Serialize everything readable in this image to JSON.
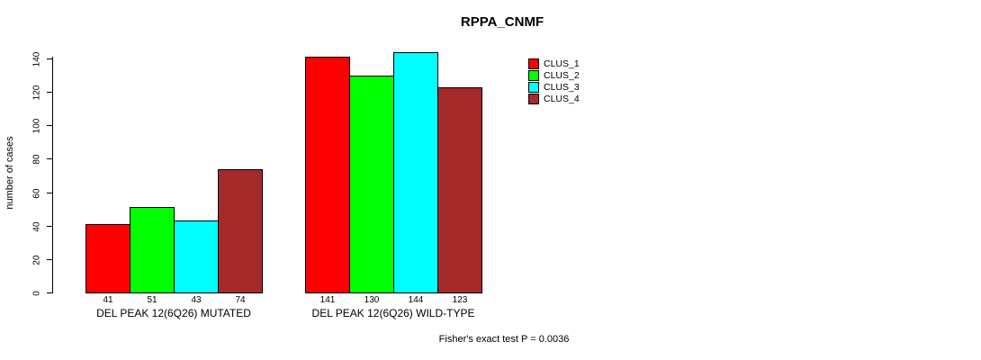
{
  "title": "RPPA_CNMF",
  "footer": "Fisher's exact test P = 0.0036",
  "chart_data": {
    "type": "bar",
    "title": "RPPA_CNMF",
    "xlabel": "",
    "ylabel": "number of cases",
    "ylim": [
      0,
      140
    ],
    "yticks": [
      0,
      20,
      40,
      60,
      80,
      100,
      120,
      140
    ],
    "grid": false,
    "legend_position": "top-right-inside",
    "bar_border_color": "#000000",
    "background_color": "#ffffff",
    "categories": [
      "DEL PEAK 12(6Q26) MUTATED",
      "DEL PEAK 12(6Q26) WILD-TYPE"
    ],
    "series": [
      {
        "name": "CLUS_1",
        "color": "#ff0000",
        "values": [
          41,
          141
        ]
      },
      {
        "name": "CLUS_2",
        "color": "#00ff00",
        "values": [
          51,
          130
        ]
      },
      {
        "name": "CLUS_3",
        "color": "#00ffff",
        "values": [
          43,
          144
        ]
      },
      {
        "name": "CLUS_4",
        "color": "#a52a2a",
        "values": [
          74,
          123
        ]
      }
    ],
    "groups": [
      {
        "label": "DEL PEAK 12(6Q26) MUTATED",
        "values": [
          41,
          51,
          43,
          74
        ],
        "value_labels": [
          "41",
          "51",
          "43",
          "74"
        ]
      },
      {
        "label": "DEL PEAK 12(6Q26) WILD-TYPE",
        "values": [
          141,
          130,
          144,
          123
        ],
        "value_labels": [
          "141",
          "130",
          "144",
          "123"
        ]
      }
    ],
    "annotation": "Fisher's exact test P = 0.0036"
  }
}
